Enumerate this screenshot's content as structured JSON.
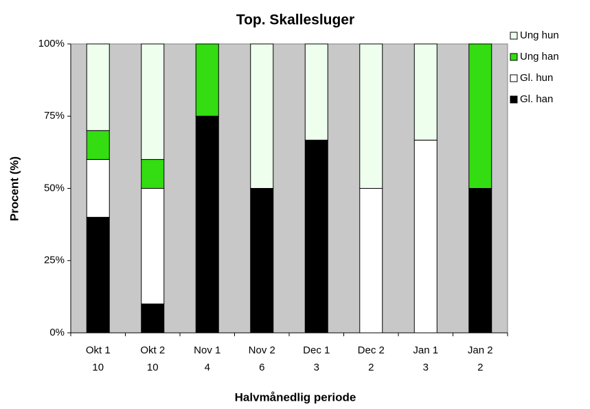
{
  "chart_data": {
    "type": "stacked_bar_percent",
    "title": "Top. Skallesluger",
    "x_label": "Halvmånedlig periode",
    "y_label": "Procent (%)",
    "categories": [
      "Okt 1",
      "Okt 2",
      "Nov 1",
      "Nov 2",
      "Dec 1",
      "Dec 2",
      "Jan 1",
      "Jan 2"
    ],
    "category_counts": [
      "10",
      "10",
      "4",
      "6",
      "3",
      "2",
      "3",
      "2"
    ],
    "series": [
      {
        "name": "Gl. han",
        "color": "#000000",
        "values": [
          40,
          10,
          75,
          50,
          66.7,
          0,
          0,
          50
        ]
      },
      {
        "name": "Gl. hun",
        "color": "#ffffff",
        "values": [
          20,
          40,
          0,
          0,
          0,
          50,
          66.7,
          0
        ]
      },
      {
        "name": "Ung han",
        "color": "#33dd11",
        "values": [
          10,
          10,
          25,
          0,
          0,
          0,
          0,
          50
        ]
      },
      {
        "name": "Ung hun",
        "color": "#eeffee",
        "values": [
          30,
          40,
          0,
          50,
          33.3,
          50,
          33.3,
          0
        ]
      }
    ],
    "ylim": [
      0,
      100
    ],
    "yticks": [
      {
        "value": 0,
        "label": "0%"
      },
      {
        "value": 25,
        "label": "25%"
      },
      {
        "value": 50,
        "label": "50%"
      },
      {
        "value": 75,
        "label": "75%"
      },
      {
        "value": 100,
        "label": "100%"
      }
    ],
    "plot_background": "#c8c8c8",
    "legend": "right"
  }
}
